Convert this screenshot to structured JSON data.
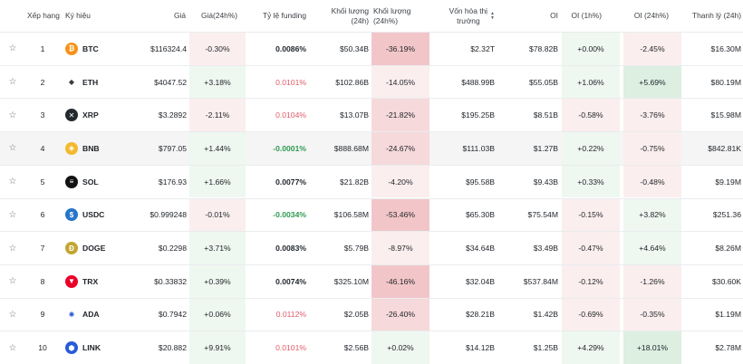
{
  "headers": {
    "rank": "Xếp hạng",
    "symbol": "Ký hiệu",
    "price": "Giá",
    "change24": "Giá(24h%)",
    "funding": "Tỷ lệ funding",
    "volume": "Khối lượng (24h)",
    "volume_pct": "Khối lượng (24h%)",
    "mcap_line1": "Vốn hóa thị",
    "mcap_line2": "trường",
    "oi": "OI",
    "oi1h": "OI (1h%)",
    "oi24h": "OI (24h%)",
    "liq": "Thanh lý (24h)"
  },
  "colors": {
    "pos_light": "#eef7f0",
    "pos_mid": "#dcefe1",
    "neg_light": "#fbeeee",
    "neg_mid": "#f6d9da",
    "neg_strong": "#f2c6c8",
    "funding_neg": "#e05b6a",
    "funding_pos": "#2c9a4f"
  },
  "rows": [
    {
      "rank": "1",
      "symbol": "BTC",
      "icon": "btc-icon",
      "icon_glyph": "₿",
      "icon_bg": "#f7931a",
      "price": "$116324.4",
      "change24": "-0.30%",
      "change24_level": "neg1",
      "funding": "0.0086%",
      "funding_style": "bold",
      "volume": "$50.34B",
      "volume_pct": "-36.19%",
      "volume_pct_level": "neg3",
      "mcap": "$2.32T",
      "oi": "$78.82B",
      "oi1h": "+0.00%",
      "oi1h_level": "pos1",
      "oi24h": "-2.45%",
      "oi24h_level": "neg1",
      "liq": "$16.30M"
    },
    {
      "rank": "2",
      "symbol": "ETH",
      "icon": "eth-icon",
      "icon_glyph": "◆",
      "icon_bg": "#ffffff",
      "price": "$4047.52",
      "change24": "+3.18%",
      "change24_level": "pos1",
      "funding": "0.0101%",
      "funding_style": "neg",
      "volume": "$102.86B",
      "volume_pct": "-14.05%",
      "volume_pct_level": "neg1",
      "mcap": "$488.99B",
      "oi": "$55.05B",
      "oi1h": "+1.06%",
      "oi1h_level": "pos1",
      "oi24h": "+5.69%",
      "oi24h_level": "pos2",
      "liq": "$80.19M"
    },
    {
      "rank": "3",
      "symbol": "XRP",
      "icon": "xrp-icon",
      "icon_glyph": "✕",
      "icon_bg": "#23292f",
      "price": "$3.2892",
      "change24": "-2.11%",
      "change24_level": "neg1",
      "funding": "0.0104%",
      "funding_style": "neg",
      "volume": "$13.07B",
      "volume_pct": "-21.82%",
      "volume_pct_level": "neg2",
      "mcap": "$195.25B",
      "oi": "$8.51B",
      "oi1h": "-0.58%",
      "oi1h_level": "neg1",
      "oi24h": "-3.76%",
      "oi24h_level": "neg1",
      "liq": "$15.98M"
    },
    {
      "rank": "4",
      "symbol": "BNB",
      "icon": "bnb-icon",
      "icon_glyph": "◈",
      "icon_bg": "#f3ba2f",
      "price": "$797.05",
      "change24": "+1.44%",
      "change24_level": "pos1",
      "funding": "-0.0001%",
      "funding_style": "pos",
      "volume": "$888.68M",
      "volume_pct": "-24.67%",
      "volume_pct_level": "neg2",
      "mcap": "$111.03B",
      "oi": "$1.27B",
      "oi1h": "+0.22%",
      "oi1h_level": "pos1",
      "oi24h": "-0.75%",
      "oi24h_level": "neg1",
      "liq": "$842.81K"
    },
    {
      "rank": "5",
      "symbol": "SOL",
      "icon": "sol-icon",
      "icon_glyph": "≡",
      "icon_bg": "#121212",
      "price": "$176.93",
      "change24": "+1.66%",
      "change24_level": "pos1",
      "funding": "0.0077%",
      "funding_style": "bold",
      "volume": "$21.82B",
      "volume_pct": "-4.20%",
      "volume_pct_level": "neg1",
      "mcap": "$95.58B",
      "oi": "$9.43B",
      "oi1h": "+0.33%",
      "oi1h_level": "pos1",
      "oi24h": "-0.48%",
      "oi24h_level": "neg1",
      "liq": "$9.19M"
    },
    {
      "rank": "6",
      "symbol": "USDC",
      "icon": "usdc-icon",
      "icon_glyph": "$",
      "icon_bg": "#2775ca",
      "price": "$0.999248",
      "change24": "-0.01%",
      "change24_level": "neg1",
      "funding": "-0.0034%",
      "funding_style": "pos",
      "volume": "$106.58M",
      "volume_pct": "-53.46%",
      "volume_pct_level": "neg3",
      "mcap": "$65.30B",
      "oi": "$75.54M",
      "oi1h": "-0.15%",
      "oi1h_level": "neg1",
      "oi24h": "+3.82%",
      "oi24h_level": "pos1",
      "liq": "$251.36"
    },
    {
      "rank": "7",
      "symbol": "DOGE",
      "icon": "doge-icon",
      "icon_glyph": "Ð",
      "icon_bg": "#c2a633",
      "price": "$0.2298",
      "change24": "+3.71%",
      "change24_level": "pos1",
      "funding": "0.0083%",
      "funding_style": "bold",
      "volume": "$5.79B",
      "volume_pct": "-8.97%",
      "volume_pct_level": "neg1",
      "mcap": "$34.64B",
      "oi": "$3.49B",
      "oi1h": "-0.47%",
      "oi1h_level": "neg1",
      "oi24h": "+4.64%",
      "oi24h_level": "pos1",
      "liq": "$8.26M"
    },
    {
      "rank": "8",
      "symbol": "TRX",
      "icon": "trx-icon",
      "icon_glyph": "▼",
      "icon_bg": "#eb0029",
      "price": "$0.33832",
      "change24": "+0.39%",
      "change24_level": "pos1",
      "funding": "0.0074%",
      "funding_style": "bold",
      "volume": "$325.10M",
      "volume_pct": "-46.16%",
      "volume_pct_level": "neg3",
      "mcap": "$32.04B",
      "oi": "$537.84M",
      "oi1h": "-0.12%",
      "oi1h_level": "neg1",
      "oi24h": "-1.26%",
      "oi24h_level": "neg1",
      "liq": "$30.60K"
    },
    {
      "rank": "9",
      "symbol": "ADA",
      "icon": "ada-icon",
      "icon_glyph": "✺",
      "icon_bg": "#ffffff",
      "price": "$0.7942",
      "change24": "+0.06%",
      "change24_level": "pos1",
      "funding": "0.0112%",
      "funding_style": "neg",
      "volume": "$2.05B",
      "volume_pct": "-26.40%",
      "volume_pct_level": "neg2",
      "mcap": "$28.21B",
      "oi": "$1.42B",
      "oi1h": "-0.69%",
      "oi1h_level": "neg1",
      "oi24h": "-0.35%",
      "oi24h_level": "neg1",
      "liq": "$1.19M"
    },
    {
      "rank": "10",
      "symbol": "LINK",
      "icon": "link-icon",
      "icon_glyph": "⬢",
      "icon_bg": "#2a5ada",
      "price": "$20.882",
      "change24": "+9.91%",
      "change24_level": "pos1",
      "funding": "0.0101%",
      "funding_style": "neg",
      "volume": "$2.56B",
      "volume_pct": "+0.02%",
      "volume_pct_level": "pos1",
      "mcap": "$14.12B",
      "oi": "$1.25B",
      "oi1h": "+4.29%",
      "oi1h_level": "pos1",
      "oi24h": "+18.01%",
      "oi24h_level": "pos2",
      "liq": "$2.78M"
    }
  ]
}
